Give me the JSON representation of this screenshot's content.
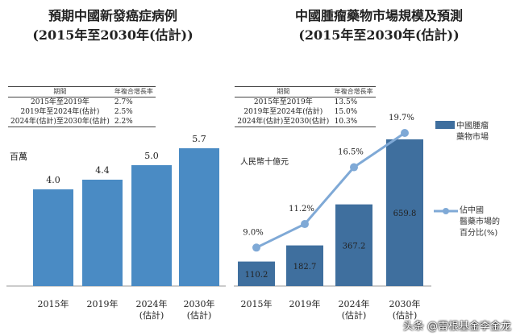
{
  "chart_data": [
    {
      "type": "bar",
      "title": "預期中國新發癌症病例",
      "subtitle": "(2015年至2030年(估計))",
      "ylabel": "百萬",
      "categories": [
        "2015年",
        "2019年",
        "2024年\n(估計)",
        "2030年\n(估計)"
      ],
      "values": [
        4.0,
        4.4,
        5.0,
        5.7
      ],
      "color": "#4a8bc4",
      "cagr_table": {
        "headers": [
          "期間",
          "年複合增長率"
        ],
        "rows": [
          [
            "2015年至2019年",
            "2.7%"
          ],
          [
            "2019年至2024年(估計)",
            "2.5%"
          ],
          [
            "2024年(估計)至2030年(估計)",
            "2.2%"
          ]
        ]
      }
    },
    {
      "type": "bar+line",
      "title": "中國腫瘤藥物市場規模及預測",
      "subtitle": "(2015年至2030年(估計))",
      "ylabel": "人民幣十億元",
      "categories": [
        "2015年",
        "2019年",
        "2024年\n(估計)",
        "2030年\n(估計)"
      ],
      "series": [
        {
          "name": "中國腫瘤藥物市場",
          "type": "bar",
          "values": [
            110.2,
            182.7,
            367.2,
            659.8
          ],
          "color": "#3f6f9e"
        },
        {
          "name": "佔中國醫藥市場的百分比(%)",
          "type": "line",
          "values": [
            9.0,
            11.2,
            16.5,
            19.7
          ],
          "labels": [
            "9.0%",
            "11.2%",
            "16.5%",
            "19.7%"
          ],
          "color": "#7fa9d6"
        }
      ],
      "legend": "right",
      "cagr_table": {
        "headers": [
          "期間",
          "年複合增長率"
        ],
        "rows": [
          [
            "2015年至2019年",
            "13.5%"
          ],
          [
            "2019年至2024年(估計)",
            "15.0%"
          ],
          [
            "2024年(估計)至2030(估計)",
            "10.3%"
          ]
        ]
      }
    }
  ],
  "legend_labels": {
    "bar": [
      "中國腫瘤",
      "藥物市場"
    ],
    "line": [
      "佔中國",
      "醫藥市場的",
      "百分比(%)"
    ]
  },
  "watermark": "头条 @雷根基金李金龙"
}
